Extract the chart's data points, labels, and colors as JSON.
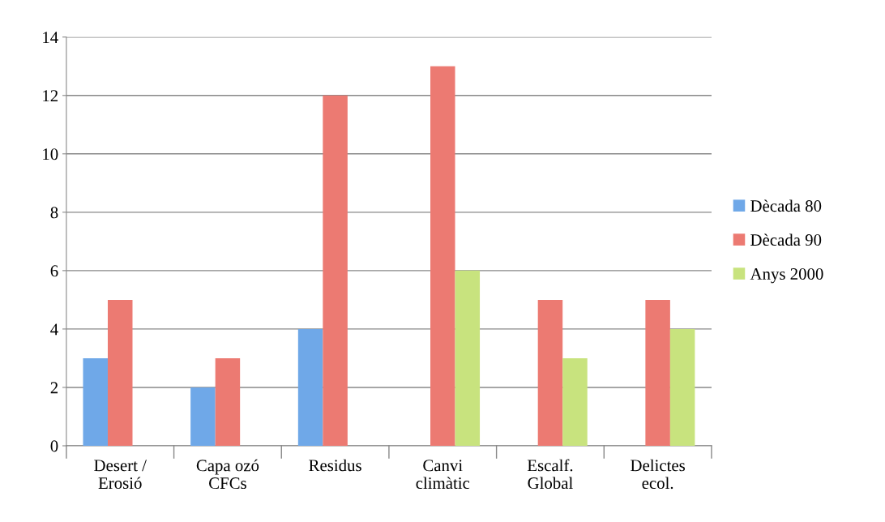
{
  "chart_data": {
    "type": "bar",
    "categories": [
      "Desert /\nErosió",
      "Capa ozó\nCFCs",
      "Residus",
      "Canvi\nclimàtic",
      "Escalf.\nGlobal",
      "Delictes\necol."
    ],
    "series": [
      {
        "name": "Dècada 80",
        "color": "#6fa8e8",
        "values": [
          3,
          2,
          4,
          null,
          null,
          null
        ]
      },
      {
        "name": "Dècada 90",
        "color": "#ec7a72",
        "values": [
          5,
          3,
          12,
          13,
          5,
          5
        ]
      },
      {
        "name": "Anys 2000",
        "color": "#c8e37e",
        "values": [
          null,
          null,
          null,
          6,
          3,
          4
        ]
      }
    ],
    "ylim": [
      0,
      14
    ],
    "yticks": [
      0,
      2,
      4,
      6,
      8,
      10,
      12,
      14
    ],
    "grid": "y",
    "legend": "right"
  }
}
